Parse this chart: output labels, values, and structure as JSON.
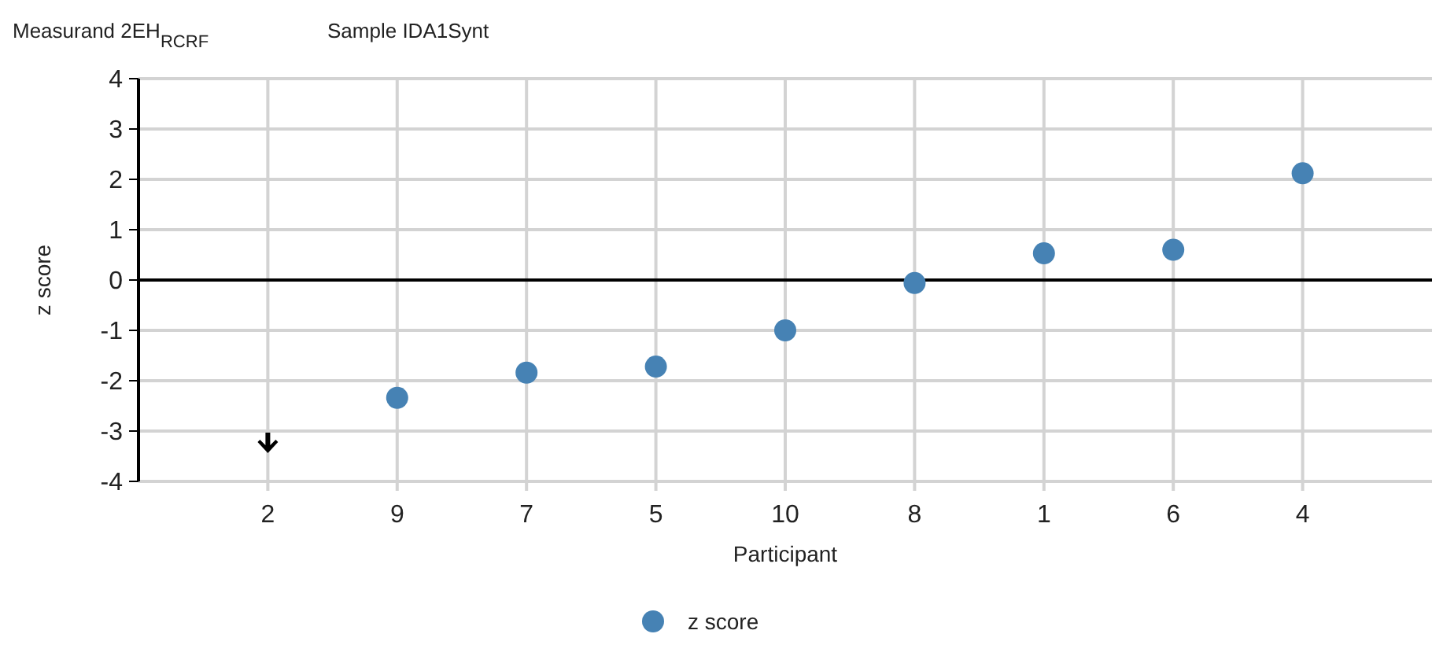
{
  "chart_data": {
    "type": "scatter",
    "title": "Measurand  2EH$_{RCRF}$",
    "subtitle": "Sample  IDA1Synt",
    "xlabel": "Participant",
    "ylabel": "z score",
    "categories": [
      "2",
      "9",
      "7",
      "5",
      "10",
      "8",
      "1",
      "6",
      "4"
    ],
    "series": [
      {
        "name": "z score",
        "color": "#4682b4",
        "values": [
          null,
          -2.34,
          -1.84,
          -1.72,
          -1.0,
          -0.06,
          0.53,
          0.6,
          2.12
        ]
      }
    ],
    "ylim": [
      -4,
      4
    ],
    "yticks": [
      -4,
      -3,
      -2,
      -1,
      0,
      1,
      2,
      3,
      4
    ],
    "grid": true,
    "legend": "bottom",
    "marker": "circle",
    "ref_lines": [
      {
        "axis": "y",
        "value": 0,
        "color": "#000000"
      }
    ]
  }
}
